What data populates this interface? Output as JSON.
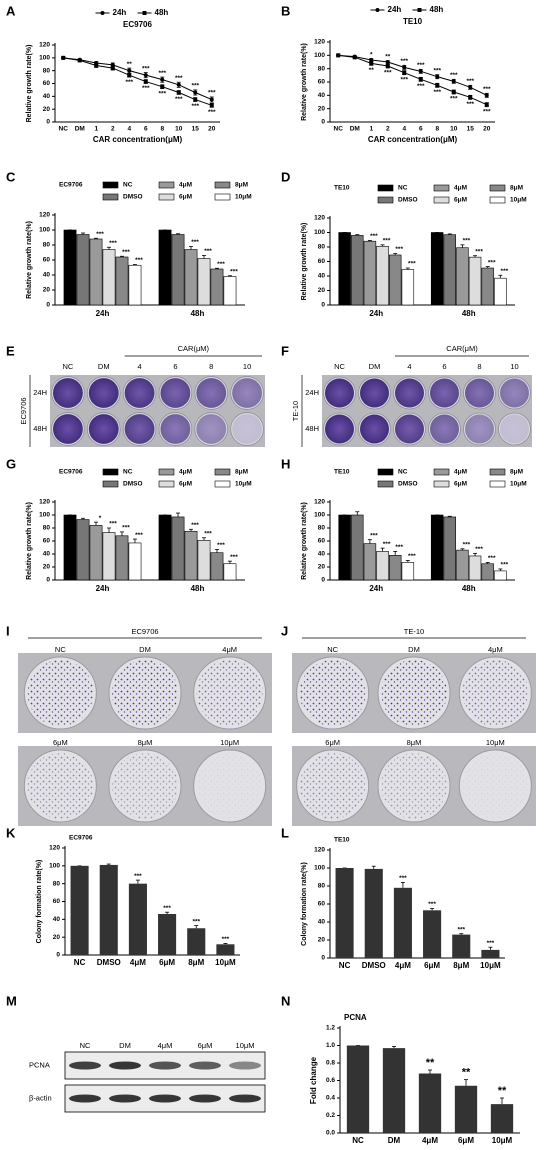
{
  "chart_data": [
    {
      "type": "line",
      "panel": "A",
      "title": "EC9706",
      "categories": [
        "NC",
        "DM",
        "1",
        "2",
        "4",
        "6",
        "8",
        "10",
        "15",
        "20"
      ],
      "xlabel": "CAR concentration(μM)",
      "ylabel": "Relative growth rate(%)",
      "ylim": [
        0,
        120
      ],
      "yticks": [
        0,
        20,
        40,
        60,
        80,
        100,
        120
      ],
      "legend": "top",
      "series": [
        {
          "name": "24h",
          "color": "#000000",
          "marker": "circle",
          "values": [
            100,
            97,
            92,
            89,
            80,
            73,
            66,
            58,
            46,
            35
          ],
          "errors": [
            1,
            1,
            2,
            3,
            4,
            4,
            4,
            4,
            4,
            4
          ],
          "annotations": [
            null,
            null,
            null,
            null,
            "**",
            "***",
            "***",
            "***",
            "***",
            "***"
          ]
        },
        {
          "name": "48h",
          "color": "#000000",
          "marker": "square",
          "values": [
            100,
            96,
            88,
            84,
            73,
            63,
            55,
            46,
            35,
            26
          ],
          "errors": [
            1,
            1,
            3,
            3,
            3,
            3,
            3,
            3,
            3,
            3
          ],
          "annotations": [
            null,
            null,
            null,
            null,
            "***",
            "***",
            "***",
            "***",
            "***",
            "***"
          ]
        }
      ]
    },
    {
      "type": "line",
      "panel": "B",
      "title": "TE10",
      "categories": [
        "NC",
        "DM",
        "1",
        "2",
        "4",
        "6",
        "8",
        "10",
        "15",
        "20"
      ],
      "xlabel": "CAR concentration(μM)",
      "ylabel": "Relative growth rate(%)",
      "ylim": [
        0,
        120
      ],
      "yticks": [
        0,
        20,
        40,
        60,
        80,
        100,
        120
      ],
      "legend": "top",
      "series": [
        {
          "name": "24h",
          "color": "#000000",
          "marker": "circle",
          "values": [
            100,
            98,
            93,
            90,
            82,
            76,
            68,
            61,
            52,
            40
          ],
          "errors": [
            1,
            1,
            2,
            2,
            3,
            3,
            3,
            3,
            3,
            3
          ],
          "annotations": [
            null,
            null,
            "*",
            "**",
            "***",
            "***",
            "***",
            "***",
            "***",
            "***"
          ]
        },
        {
          "name": "48h",
          "color": "#000000",
          "marker": "square",
          "values": [
            100,
            97,
            88,
            84,
            74,
            64,
            55,
            45,
            37,
            26
          ],
          "errors": [
            1,
            1,
            3,
            3,
            3,
            3,
            3,
            3,
            3,
            3
          ],
          "annotations": [
            null,
            null,
            "**",
            "***",
            "***",
            "***",
            "***",
            "***",
            "***",
            "***"
          ]
        }
      ]
    },
    {
      "type": "grouped_bar",
      "panel": "C",
      "title": "EC9706",
      "categories": [
        "24h",
        "48h"
      ],
      "ylabel": "Relative growth rate(%)",
      "ylim": [
        0,
        120
      ],
      "yticks": [
        0,
        20,
        40,
        60,
        80,
        100,
        120
      ],
      "legend": "top",
      "series": [
        {
          "name": "NC",
          "color": "#000000",
          "values": [
            100,
            100
          ],
          "errors": [
            0,
            0
          ],
          "annotations": [
            null,
            null
          ]
        },
        {
          "name": "DMSO",
          "color": "#777777",
          "values": [
            94,
            94
          ],
          "errors": [
            2,
            1
          ],
          "annotations": [
            null,
            null
          ]
        },
        {
          "name": "4μM",
          "color": "#9a9a9a",
          "values": [
            88,
            74
          ],
          "errors": [
            1,
            4
          ],
          "annotations": [
            "***",
            "***"
          ]
        },
        {
          "name": "6μM",
          "color": "#dddddd",
          "values": [
            74,
            62
          ],
          "errors": [
            3,
            4
          ],
          "annotations": [
            "***",
            "***"
          ]
        },
        {
          "name": "8μM",
          "color": "#888888",
          "values": [
            64,
            48
          ],
          "errors": [
            1,
            1
          ],
          "annotations": [
            "***",
            "***"
          ]
        },
        {
          "name": "10μM",
          "color": "#ffffff",
          "values": [
            53,
            38
          ],
          "errors": [
            1,
            1
          ],
          "annotations": [
            "***",
            "***"
          ]
        }
      ]
    },
    {
      "type": "grouped_bar",
      "panel": "D",
      "title": "TE10",
      "categories": [
        "24h",
        "48h"
      ],
      "ylabel": "Relative growth rate(%)",
      "ylim": [
        0,
        120
      ],
      "yticks": [
        0,
        20,
        40,
        60,
        80,
        100,
        120
      ],
      "legend": "top",
      "series": [
        {
          "name": "NC",
          "color": "#000000",
          "values": [
            100,
            100
          ],
          "errors": [
            0,
            0
          ],
          "annotations": [
            null,
            null
          ]
        },
        {
          "name": "DMSO",
          "color": "#777777",
          "values": [
            96,
            97
          ],
          "errors": [
            1,
            1
          ],
          "annotations": [
            null,
            null
          ]
        },
        {
          "name": "4μM",
          "color": "#9a9a9a",
          "values": [
            88,
            79
          ],
          "errors": [
            1,
            4
          ],
          "annotations": [
            "***",
            "***"
          ]
        },
        {
          "name": "6μM",
          "color": "#dddddd",
          "values": [
            81,
            66
          ],
          "errors": [
            2,
            2
          ],
          "annotations": [
            "***",
            "***"
          ]
        },
        {
          "name": "8μM",
          "color": "#888888",
          "values": [
            69,
            51
          ],
          "errors": [
            2,
            2
          ],
          "annotations": [
            "***",
            "***"
          ]
        },
        {
          "name": "10μM",
          "color": "#ffffff",
          "values": [
            49,
            37
          ],
          "errors": [
            2,
            4
          ],
          "annotations": [
            "***",
            "***"
          ]
        }
      ]
    },
    {
      "type": "grouped_bar",
      "panel": "G",
      "title": "EC9706",
      "categories": [
        "24h",
        "48h"
      ],
      "ylabel": "Relative growth rate(%)",
      "ylim": [
        0,
        120
      ],
      "yticks": [
        0,
        20,
        40,
        60,
        80,
        100,
        120
      ],
      "legend": "top",
      "series": [
        {
          "name": "NC",
          "color": "#000000",
          "values": [
            100,
            100
          ],
          "errors": [
            0,
            0
          ],
          "annotations": [
            null,
            null
          ]
        },
        {
          "name": "DMSO",
          "color": "#777777",
          "values": [
            93,
            97
          ],
          "errors": [
            2,
            6
          ],
          "annotations": [
            null,
            null
          ]
        },
        {
          "name": "4μM",
          "color": "#9a9a9a",
          "values": [
            84,
            75
          ],
          "errors": [
            5,
            3
          ],
          "annotations": [
            "*",
            "***"
          ]
        },
        {
          "name": "6μM",
          "color": "#dddddd",
          "values": [
            73,
            61
          ],
          "errors": [
            7,
            4
          ],
          "annotations": [
            "***",
            "***"
          ]
        },
        {
          "name": "8μM",
          "color": "#888888",
          "values": [
            68,
            42
          ],
          "errors": [
            6,
            5
          ],
          "annotations": [
            "***",
            "***"
          ]
        },
        {
          "name": "10μM",
          "color": "#ffffff",
          "values": [
            57,
            25
          ],
          "errors": [
            6,
            4
          ],
          "annotations": [
            "***",
            "***"
          ]
        }
      ]
    },
    {
      "type": "grouped_bar",
      "panel": "H",
      "title": "TE10",
      "categories": [
        "24h",
        "48h"
      ],
      "ylabel": "Relative growth rate(%)",
      "ylim": [
        0,
        120
      ],
      "yticks": [
        0,
        20,
        40,
        60,
        80,
        100,
        120
      ],
      "legend": "top",
      "series": [
        {
          "name": "NC",
          "color": "#000000",
          "values": [
            100,
            100
          ],
          "errors": [
            0,
            0
          ],
          "annotations": [
            null,
            null
          ]
        },
        {
          "name": "DMSO",
          "color": "#777777",
          "values": [
            100,
            97
          ],
          "errors": [
            5,
            1
          ],
          "annotations": [
            null,
            null
          ]
        },
        {
          "name": "4μM",
          "color": "#9a9a9a",
          "values": [
            56,
            46
          ],
          "errors": [
            6,
            2
          ],
          "annotations": [
            "***",
            "***"
          ]
        },
        {
          "name": "6μM",
          "color": "#dddddd",
          "values": [
            44,
            37
          ],
          "errors": [
            5,
            4
          ],
          "annotations": [
            "***",
            "***"
          ]
        },
        {
          "name": "8μM",
          "color": "#888888",
          "values": [
            38,
            25
          ],
          "errors": [
            6,
            2
          ],
          "annotations": [
            "***",
            "***"
          ]
        },
        {
          "name": "10μM",
          "color": "#ffffff",
          "values": [
            27,
            14
          ],
          "errors": [
            3,
            3
          ],
          "annotations": [
            "***",
            "***"
          ]
        }
      ]
    },
    {
      "type": "bar",
      "panel": "K",
      "title": "EC9706",
      "categories": [
        "NC",
        "DMSO",
        "4μM",
        "6μM",
        "8μM",
        "10μM"
      ],
      "ylabel": "Colony formation rate(%)",
      "ylim": [
        0,
        120
      ],
      "yticks": [
        0,
        20,
        40,
        60,
        80,
        100,
        120
      ],
      "color": "#333333",
      "values": [
        100,
        101,
        80,
        46,
        30,
        12
      ],
      "errors": [
        0,
        1,
        4,
        2,
        3,
        1
      ],
      "annotations": [
        null,
        null,
        "***",
        "***",
        "***",
        "***"
      ]
    },
    {
      "type": "bar",
      "panel": "L",
      "title": "TE10",
      "categories": [
        "NC",
        "DMSO",
        "4μM",
        "6μM",
        "8μM",
        "10μM"
      ],
      "ylabel": "Colony formation rate(%)",
      "ylim": [
        0,
        120
      ],
      "yticks": [
        0,
        20,
        40,
        60,
        80,
        100,
        120
      ],
      "color": "#333333",
      "values": [
        100,
        99,
        78,
        53,
        26,
        9
      ],
      "errors": [
        0,
        3,
        6,
        2,
        1,
        3
      ],
      "annotations": [
        null,
        null,
        "***",
        "***",
        "***",
        "***"
      ]
    },
    {
      "type": "bar",
      "panel": "N",
      "title": "PCNA",
      "categories": [
        "NC",
        "DM",
        "4μM",
        "6μM",
        "10μM"
      ],
      "ylabel": "Fold change",
      "ylim": [
        0,
        1.2
      ],
      "yticks": [
        {
          "value": 0,
          "label": "0.0"
        },
        0.2,
        0.4,
        0.6,
        0.8,
        {
          "value": 1,
          "label": "1.0"
        },
        1.2
      ],
      "color": "#333333",
      "values": [
        1.0,
        0.97,
        0.68,
        0.54,
        0.33
      ],
      "errors": [
        0,
        0.02,
        0.04,
        0.07,
        0.07
      ],
      "annotations": [
        null,
        null,
        "**",
        "**",
        "**"
      ]
    }
  ],
  "images": [
    {
      "type": "plate",
      "panel": "E",
      "cell_line": "EC9706",
      "group": "CAR(μM)",
      "columns": [
        "NC",
        "DM",
        "4",
        "6",
        "8",
        "10"
      ],
      "rows": [
        "24H",
        "48H"
      ]
    },
    {
      "type": "plate",
      "panel": "F",
      "cell_line": "TE-10",
      "group": "CAR(μM)",
      "columns": [
        "NC",
        "DM",
        "4",
        "6",
        "8",
        "10"
      ],
      "rows": [
        "24H",
        "48H"
      ]
    },
    {
      "type": "colony",
      "panel": "I",
      "title": "EC9706",
      "wells": [
        [
          "NC",
          "DM",
          "4μM"
        ],
        [
          "6μM",
          "8μM",
          "10μM"
        ]
      ]
    },
    {
      "type": "colony",
      "panel": "J",
      "title": "TE-10",
      "wells": [
        [
          "NC",
          "DM",
          "4μM"
        ],
        [
          "6μM",
          "8μM",
          "10μM"
        ]
      ]
    },
    {
      "type": "blot",
      "panel": "M",
      "columns": [
        "NC",
        "DM",
        "4μM",
        "6μM",
        "10μM"
      ],
      "rows": [
        "PCNA",
        "β-actin"
      ]
    }
  ]
}
